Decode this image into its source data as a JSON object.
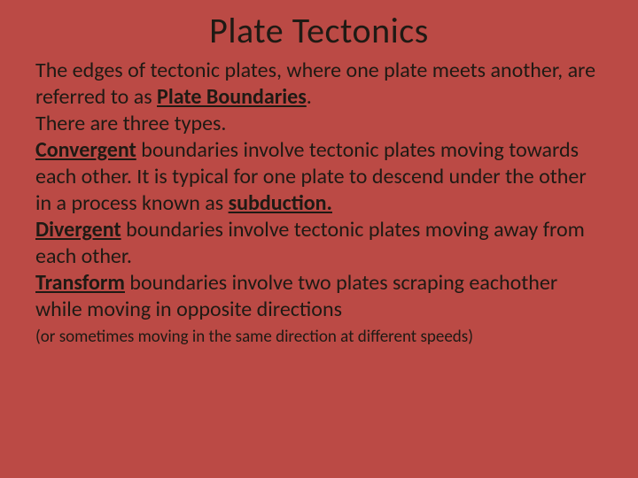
{
  "slide": {
    "background_color": "#bb4a45",
    "text_color": "#1f1a14",
    "title": "Plate Tectonics",
    "title_fontsize": 40,
    "body_fontsize": 24,
    "note_fontsize": 19,
    "p1_a": "The edges of tectonic plates, where one plate meets another, are referred to as ",
    "p1_b": "Plate Boundaries",
    "p1_c": ".",
    "p2": "There are three types.",
    "p3_a": "Convergent",
    "p3_b": " boundaries involve tectonic plates moving towards each other.  It is typical for one plate to descend under the other in a process known as ",
    "p3_c": "subduction.",
    "p4_a": "Divergent",
    "p4_b": " boundaries involve tectonic plates moving away from each other.",
    "p5_a": "Transform",
    "p5_b": " boundaries involve two plates scraping eachother while moving in opposite directions",
    "note": "(or sometimes moving in the same direction at different speeds)"
  }
}
